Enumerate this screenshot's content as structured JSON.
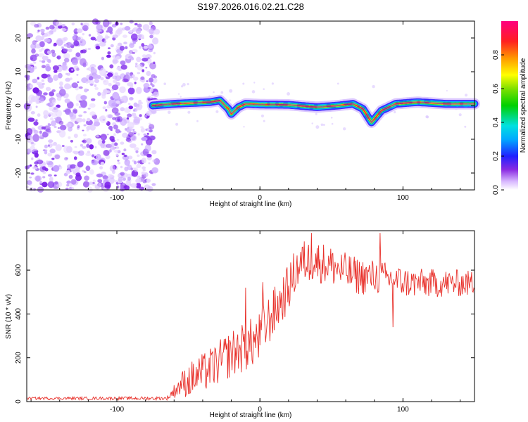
{
  "title": "S197.2026.016.02.21.C28",
  "chart_data": [
    {
      "type": "heatmap",
      "title": "",
      "xlabel": "Height of straight line (km)",
      "ylabel": "Frequency (Hz)",
      "xlim": [
        -163,
        150
      ],
      "ylim": [
        -25,
        25
      ],
      "xticks": [
        -100,
        0,
        100
      ],
      "xtick_labels": [
        "-100",
        "0",
        "100"
      ],
      "yticks": [
        -20,
        -10,
        0,
        10,
        20
      ],
      "ytick_labels": [
        "-20",
        "-10",
        "0",
        "10",
        "20"
      ],
      "ridge": {
        "x": [
          -75,
          -60,
          -45,
          -35,
          -28,
          -22,
          -20,
          -15,
          -10,
          0,
          20,
          40,
          55,
          65,
          72,
          75,
          78,
          80,
          85,
          95,
          110,
          130,
          150
        ],
        "y": [
          0,
          0.5,
          0.8,
          1.0,
          1.5,
          -1,
          -2.5,
          -0.5,
          0.5,
          0.3,
          0.2,
          -0.5,
          0,
          0.5,
          -1,
          -3,
          -5,
          -4,
          -1.5,
          0.5,
          1.0,
          0.5,
          0.5
        ]
      },
      "colorbar": {
        "label": "Normalized spectral amplitude",
        "range": [
          0,
          1
        ],
        "ticks": [
          0.0,
          0.2,
          0.4,
          0.6,
          0.8
        ],
        "tick_labels": [
          "0.0",
          "0.2",
          "0.4",
          "0.6",
          "0.8"
        ]
      }
    },
    {
      "type": "line",
      "title": "",
      "xlabel": "Height of straight line (km)",
      "ylabel": "SNR (10 * v/v)",
      "xlim": [
        -163,
        150
      ],
      "ylim": [
        0,
        780
      ],
      "xticks": [
        -100,
        0,
        100
      ],
      "xtick_labels": [
        "-100",
        "0",
        "100"
      ],
      "yticks": [
        0,
        200,
        400,
        600
      ],
      "ytick_labels": [
        "0",
        "200",
        "400",
        "600"
      ],
      "color": "#e8302a",
      "envelope": {
        "x": [
          -163,
          -65,
          -55,
          -40,
          -30,
          -20,
          -10,
          0,
          5,
          10,
          15,
          20,
          25,
          30,
          40,
          50,
          60,
          70,
          80,
          90,
          100,
          110,
          120,
          130,
          140,
          150
        ],
        "y": [
          15,
          15,
          80,
          130,
          170,
          220,
          250,
          290,
          360,
          410,
          460,
          520,
          600,
          640,
          640,
          620,
          590,
          570,
          570,
          560,
          545,
          540,
          540,
          540,
          540,
          540
        ]
      },
      "noise_amplitude": {
        "x": [
          -163,
          -65,
          -50,
          -20,
          0,
          30,
          60,
          100,
          150
        ],
        "y": [
          6,
          8,
          80,
          110,
          120,
          100,
          90,
          70,
          60
        ]
      },
      "spikes": [
        {
          "x": -10,
          "y": 520
        },
        {
          "x": 2,
          "y": 545
        },
        {
          "x": 36,
          "y": 770
        },
        {
          "x": 84,
          "y": 770
        },
        {
          "x": 93,
          "y": 340
        }
      ]
    }
  ]
}
